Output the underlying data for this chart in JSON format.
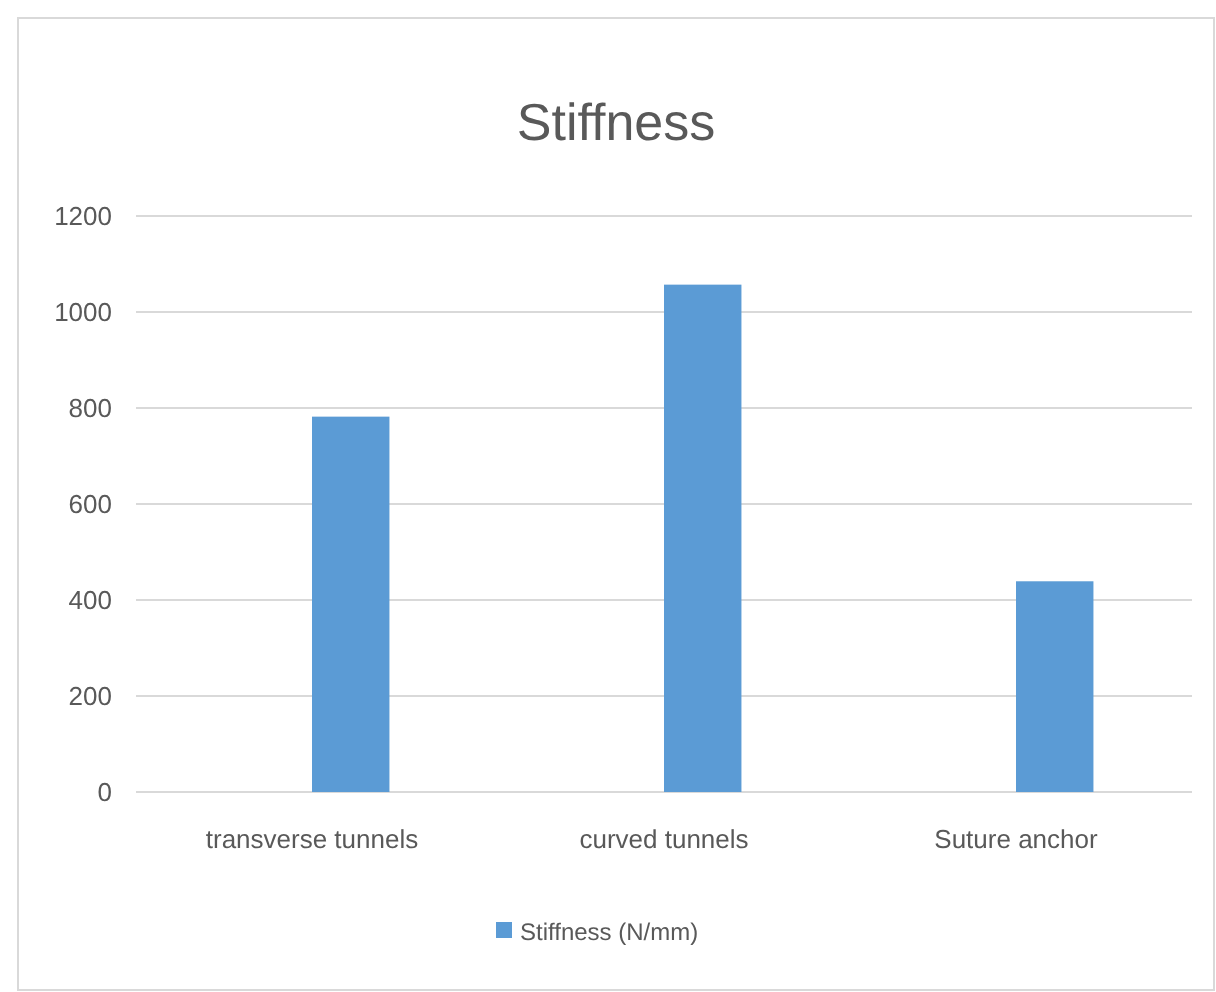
{
  "chart_data": {
    "type": "bar",
    "title": "Stiffness",
    "categories": [
      "transverse tunnels",
      "curved tunnels",
      "Suture anchor"
    ],
    "series": [
      {
        "name": "Stiffness (N/mm)",
        "color": "#5b9bd5",
        "values": [
          782,
          1057,
          439
        ]
      }
    ],
    "ylim": [
      0,
      1200
    ],
    "yticks": [
      0,
      200,
      400,
      600,
      800,
      1000,
      1200
    ],
    "grid": "y",
    "legend": "bottom"
  }
}
